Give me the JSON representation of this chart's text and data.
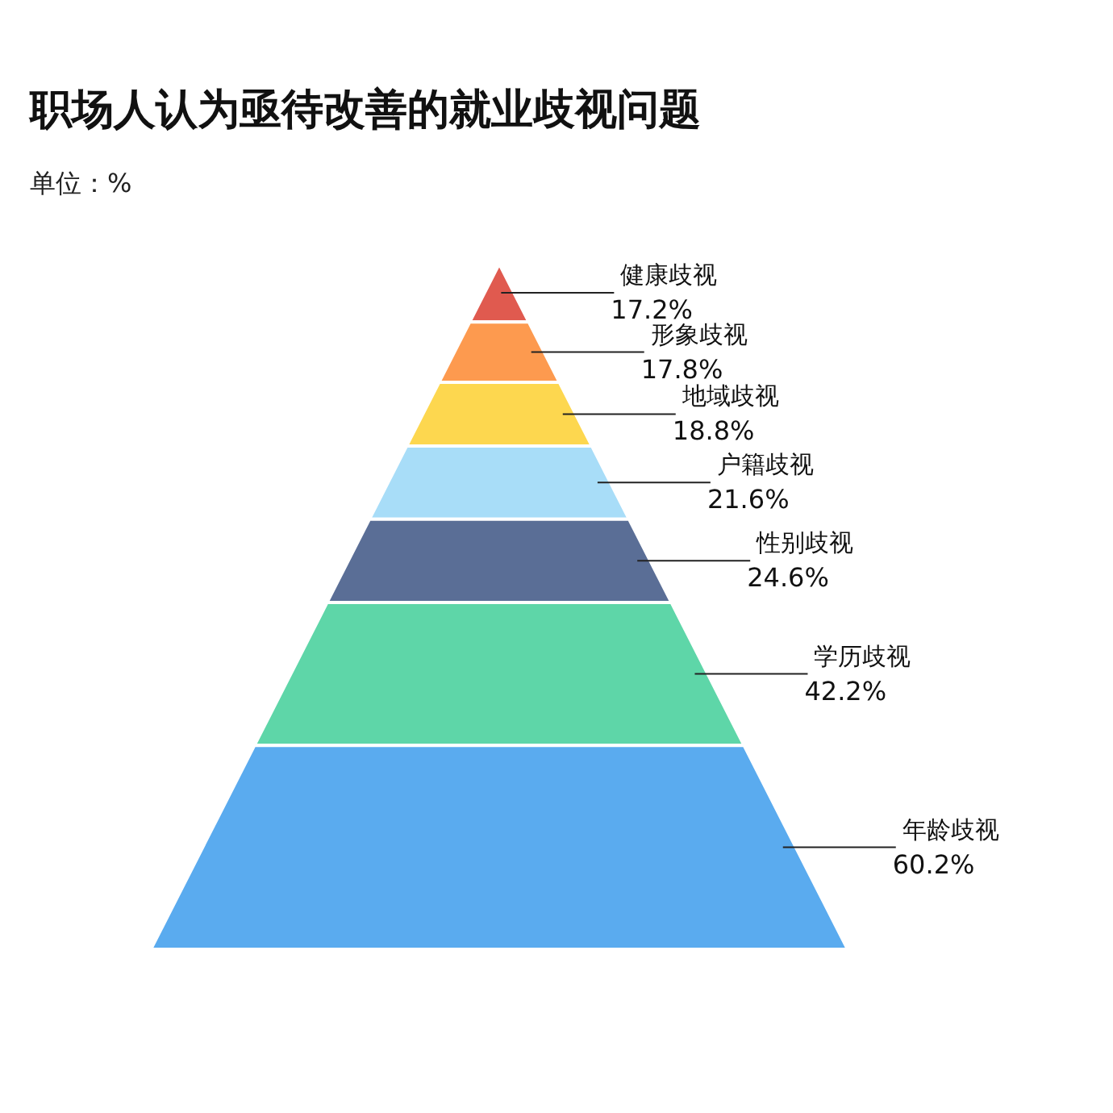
{
  "chart_data": {
    "type": "other",
    "title": "职场人认为亟待改善的就业歧视问题",
    "subtitle": "单位：%",
    "categories": [
      "健康歧视",
      "形象歧视",
      "地域歧视",
      "户籍歧视",
      "性别歧视",
      "学历歧视",
      "年龄歧视"
    ],
    "values": [
      17.2,
      17.8,
      18.8,
      21.6,
      24.6,
      42.2,
      60.2
    ],
    "value_labels": [
      "17.2%",
      "17.8%",
      "18.8%",
      "21.6%",
      "24.6%",
      "42.2%",
      "60.2%"
    ],
    "colors": [
      "#e05a4f",
      "#fd9a4f",
      "#fdd74f",
      "#a8ddf8",
      "#5a6e96",
      "#5ed6a8",
      "#5aabef"
    ]
  }
}
